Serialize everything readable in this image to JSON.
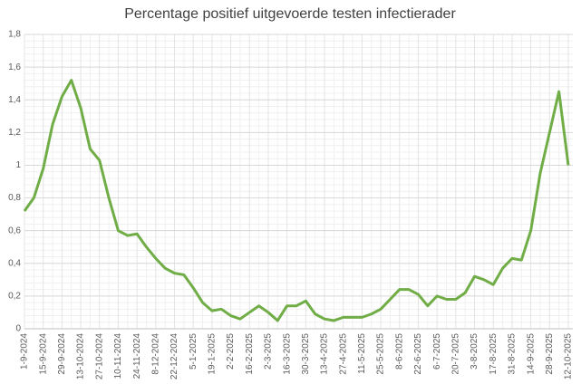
{
  "chart_data": {
    "type": "line",
    "title": "Percentage positief uitgevoerde testen infectierader",
    "categories": [
      "1-9-2024",
      null,
      "15-9-2024",
      null,
      "29-9-2024",
      null,
      "13-10-2024",
      null,
      "27-10-2024",
      null,
      "10-11-2024",
      null,
      "24-11-2024",
      null,
      "8-12-2024",
      null,
      "22-12-2024",
      null,
      "5-1-2025",
      null,
      "19-1-2025",
      null,
      "2-2-2025",
      null,
      "16-2-2025",
      null,
      "2-3-2025",
      null,
      "16-3-2025",
      null,
      "30-3-2025",
      null,
      "13-4-2025",
      null,
      "27-4-2025",
      null,
      "11-5-2025",
      null,
      "25-5-2025",
      null,
      "8-6-2025",
      null,
      "22-6-2025",
      null,
      "6-7-2025",
      null,
      "20-7-2025",
      null,
      "3-8-2025",
      null,
      "17-8-2025",
      null,
      "31-8-2025",
      null,
      "14-9-2025",
      null,
      "28-9-2025",
      null,
      "12-10-2025"
    ],
    "series": [
      {
        "name": "Percentage positief",
        "color": "#70ad47",
        "values": [
          0.72,
          0.8,
          0.98,
          1.25,
          1.42,
          1.52,
          1.35,
          1.1,
          1.03,
          0.8,
          0.6,
          0.57,
          0.58,
          0.5,
          0.43,
          0.37,
          0.34,
          0.33,
          0.25,
          0.16,
          0.11,
          0.12,
          0.08,
          0.06,
          0.1,
          0.14,
          0.1,
          0.05,
          0.14,
          0.14,
          0.17,
          0.09,
          0.06,
          0.05,
          0.07,
          0.07,
          0.07,
          0.09,
          0.12,
          0.18,
          0.24,
          0.24,
          0.21,
          0.14,
          0.2,
          0.18,
          0.18,
          0.22,
          0.32,
          0.3,
          0.27,
          0.37,
          0.43,
          0.42,
          0.6,
          0.95,
          1.2,
          1.45,
          1.0
        ]
      }
    ],
    "ylim": [
      0,
      1.8
    ],
    "yticks": [
      0,
      {
        "value": 0.2,
        "label": "0,2"
      },
      {
        "value": 0.4,
        "label": "0,4"
      },
      {
        "value": 0.6,
        "label": "0,6"
      },
      {
        "value": 0.8,
        "label": "0,8"
      },
      1,
      {
        "value": 1.2,
        "label": "1,2"
      },
      {
        "value": 1.4,
        "label": "1,4"
      },
      {
        "value": 1.6,
        "label": "1,6"
      },
      {
        "value": 1.8,
        "label": "1,8"
      }
    ],
    "grid": true
  }
}
